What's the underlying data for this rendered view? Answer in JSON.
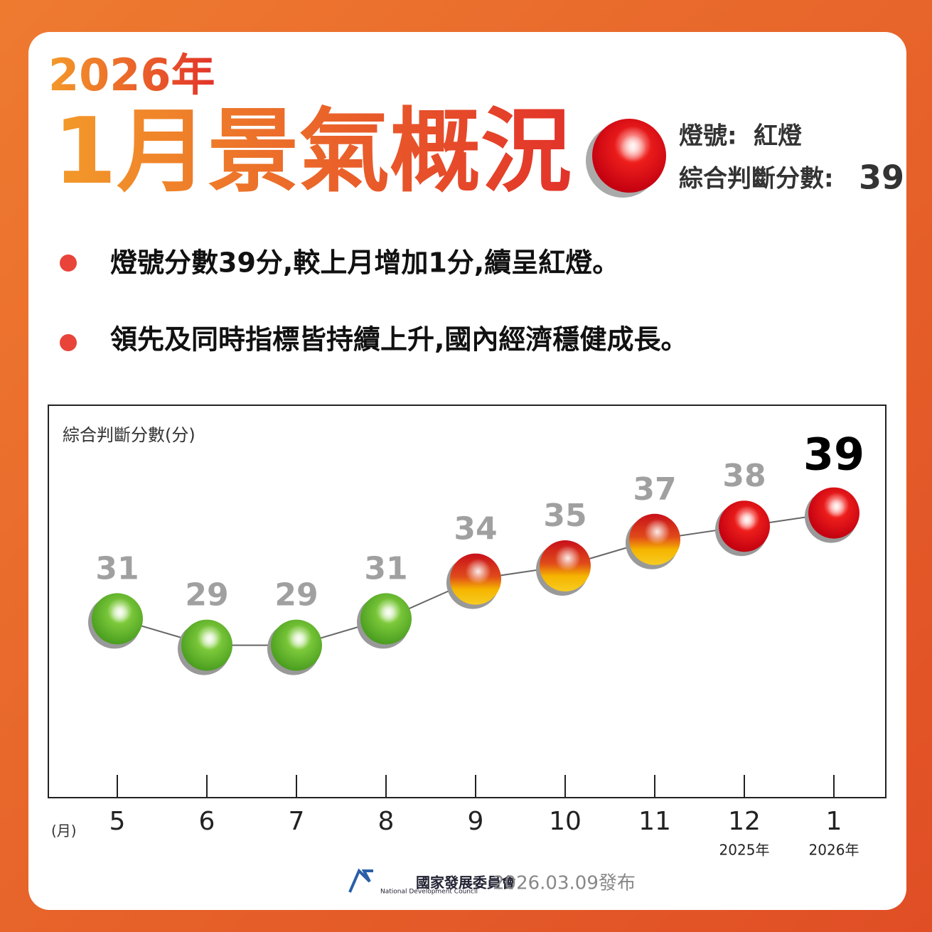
{
  "header": {
    "year": "2026年",
    "title": "1月景氣概況",
    "signal_label": "燈號:",
    "signal": "紅燈",
    "score_label": "綜合判斷分數:",
    "score": "39"
  },
  "bullets": [
    "燈號分數39分,較上月增加1分,續呈紅燈。",
    "領先及同時指標皆持續上升,國內經濟穩健成長。"
  ],
  "chart_data": {
    "type": "line",
    "y_label": "綜合判斷分數(分)",
    "x_label": "(月)",
    "categories": [
      "5",
      "6",
      "7",
      "8",
      "9",
      "10",
      "11",
      "12",
      "1"
    ],
    "category_years": [
      null,
      null,
      null,
      null,
      null,
      null,
      null,
      "2025年",
      "2026年"
    ],
    "values": [
      31,
      29,
      29,
      31,
      34,
      35,
      37,
      38,
      39
    ],
    "lights": [
      "green",
      "green",
      "green",
      "green",
      "red-yellow",
      "red-yellow",
      "red-yellow",
      "red",
      "red"
    ],
    "line_color": "#666666",
    "ylim": [
      20,
      45
    ]
  },
  "footer": {
    "org": "國家發展委員會",
    "org_en": "National Development Council",
    "date": "2026.03.09發布"
  }
}
